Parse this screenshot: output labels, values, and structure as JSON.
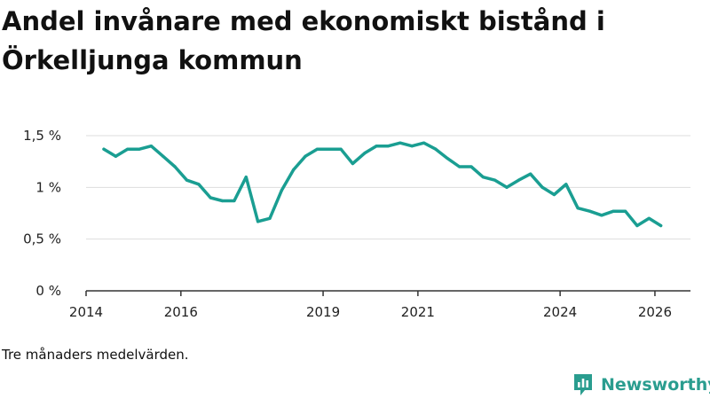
{
  "title_line1": "Andel invånare med ekonomiskt bistånd i",
  "title_line2": "Örkelljunga kommun",
  "note": "Tre månaders medelvärden.",
  "brand": {
    "name": "Newsworthy",
    "color": "#2a9d8f"
  },
  "chart_data": {
    "type": "line",
    "title": "Andel invånare med ekonomiskt bistånd i Örkelljunga kommun",
    "xlabel": "",
    "ylabel": "",
    "x_range": [
      2014.0,
      2026.75
    ],
    "ylim": [
      0,
      1.5
    ],
    "y_ticks": [
      {
        "value": 0,
        "label": "0 %"
      },
      {
        "value": 0.5,
        "label": "0,5 %"
      },
      {
        "value": 1.0,
        "label": "1 %"
      },
      {
        "value": 1.5,
        "label": "1,5 %"
      }
    ],
    "x_ticks": [
      {
        "value": 2014,
        "label": "2014"
      },
      {
        "value": 2016,
        "label": "2016"
      },
      {
        "value": 2019,
        "label": "2019"
      },
      {
        "value": 2021,
        "label": "2021"
      },
      {
        "value": 2024,
        "label": "2024"
      },
      {
        "value": 2026,
        "label": "2026"
      }
    ],
    "grid": true,
    "color": "#1a9e92",
    "series": [
      {
        "name": "Andel invånare med ekonomiskt bistånd",
        "x": [
          2014.375,
          2014.625,
          2014.875,
          2015.125,
          2015.375,
          2015.625,
          2015.875,
          2016.125,
          2016.375,
          2016.625,
          2016.875,
          2017.125,
          2017.375,
          2017.625,
          2017.875,
          2018.125,
          2018.375,
          2018.625,
          2018.875,
          2019.125,
          2019.375,
          2019.625,
          2019.875,
          2020.125,
          2020.375,
          2020.625,
          2020.875,
          2021.125,
          2021.375,
          2021.625,
          2021.875,
          2022.125,
          2022.375,
          2022.625,
          2022.875,
          2023.125,
          2023.375,
          2023.625,
          2023.875,
          2024.125,
          2024.375,
          2024.625,
          2024.875,
          2025.125,
          2025.375,
          2025.625,
          2025.875,
          2026.125
        ],
        "values": [
          1.37,
          1.3,
          1.37,
          1.37,
          1.4,
          1.3,
          1.2,
          1.07,
          1.03,
          0.9,
          0.87,
          0.87,
          1.1,
          0.67,
          0.7,
          0.97,
          1.17,
          1.3,
          1.37,
          1.37,
          1.37,
          1.23,
          1.33,
          1.4,
          1.4,
          1.43,
          1.4,
          1.43,
          1.37,
          1.28,
          1.2,
          1.2,
          1.1,
          1.07,
          1.0,
          1.07,
          1.13,
          1.0,
          0.93,
          1.03,
          0.8,
          0.77,
          0.73,
          0.77,
          0.77,
          0.63,
          0.7,
          0.63
        ]
      }
    ]
  }
}
